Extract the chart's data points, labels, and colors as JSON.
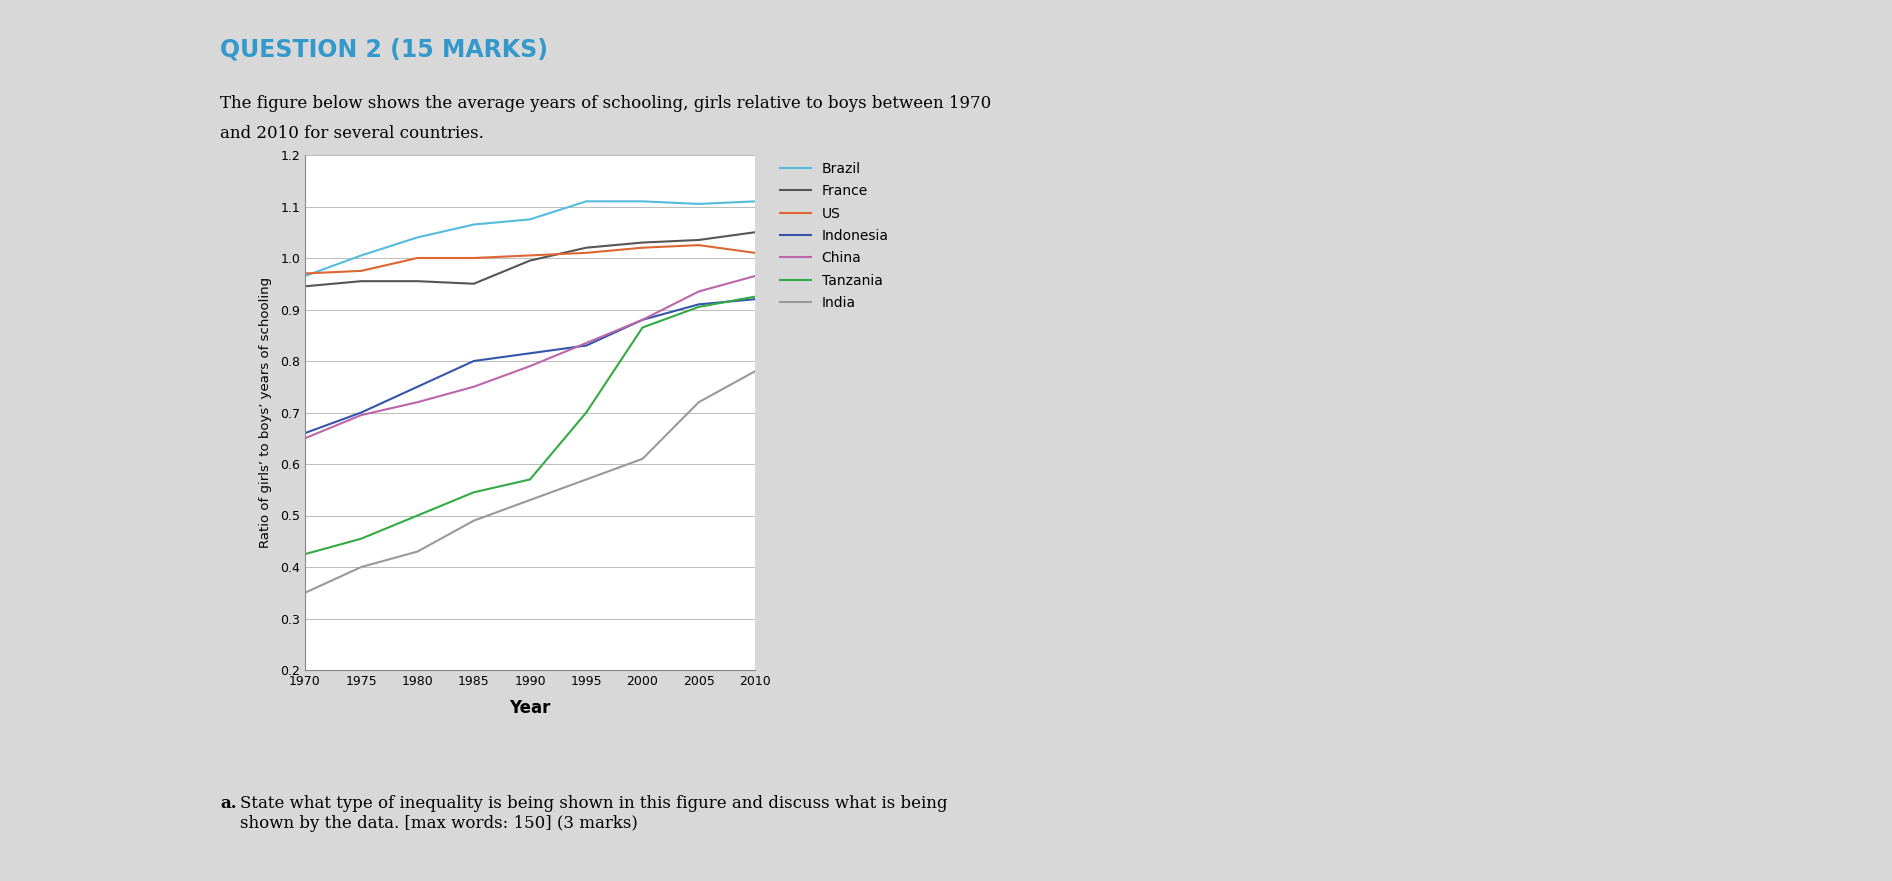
{
  "title": "QUESTION 2 (15 MARKS)",
  "title_color": "#3399cc",
  "subtitle_line1": "The figure below shows the average years of schooling, girls relative to boys between 1970",
  "subtitle_line2": "and 2010 for several countries.",
  "xlabel": "Year",
  "ylabel": "Ratio of girls’ to boys’ years of schooling",
  "ylim": [
    0.2,
    1.2
  ],
  "yticks": [
    0.2,
    0.3,
    0.4,
    0.5,
    0.6,
    0.7,
    0.8,
    0.9,
    1.0,
    1.1,
    1.2
  ],
  "xticks": [
    1970,
    1975,
    1980,
    1985,
    1990,
    1995,
    2000,
    2005,
    2010
  ],
  "years": [
    1970,
    1975,
    1980,
    1985,
    1990,
    1995,
    2000,
    2005,
    2010
  ],
  "series": [
    {
      "name": "Brazil",
      "color": "#55bbdd",
      "data": [
        0.965,
        1.005,
        1.04,
        1.065,
        1.075,
        1.11,
        1.11,
        1.105,
        1.11
      ]
    },
    {
      "name": "France",
      "color": "#555555",
      "data": [
        0.945,
        0.955,
        0.955,
        0.95,
        0.995,
        1.02,
        1.03,
        1.035,
        1.05
      ]
    },
    {
      "name": "US",
      "color": "#dd6633",
      "data": [
        0.97,
        0.975,
        1.0,
        1.0,
        1.005,
        1.01,
        1.02,
        1.025,
        1.01
      ]
    },
    {
      "name": "Indonesia",
      "color": "#3355aa",
      "data": [
        0.66,
        0.7,
        0.75,
        0.8,
        0.815,
        0.83,
        0.88,
        0.91,
        0.92
      ]
    },
    {
      "name": "China",
      "color": "#bb66aa",
      "data": [
        0.65,
        0.695,
        0.72,
        0.75,
        0.79,
        0.835,
        0.88,
        0.935,
        0.965
      ]
    },
    {
      "name": "Tanzania",
      "color": "#33aa44",
      "data": [
        0.425,
        0.455,
        0.5,
        0.545,
        0.57,
        0.7,
        0.865,
        0.905,
        0.925
      ]
    },
    {
      "name": "India",
      "color": "#999999",
      "data": [
        0.35,
        0.4,
        0.43,
        0.49,
        0.53,
        0.57,
        0.61,
        0.72,
        0.78
      ]
    }
  ],
  "bg_gray": "#d8d8d8",
  "bg_white": "#ffffff",
  "plot_bg_color": "#ffffff",
  "grid_color": "#bbbbbb",
  "bottom_text": "a. State what type of inequality is being shown in this figure and discuss what is being\nshown by the data. [max words: 150] (3 marks)"
}
